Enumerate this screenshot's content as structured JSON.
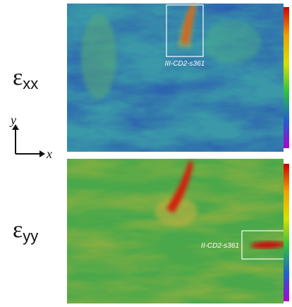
{
  "panels": [
    {
      "symbol": "ε",
      "subscript": "xx",
      "annotation": "III-CD2-s361"
    },
    {
      "symbol": "ε",
      "subscript": "yy",
      "annotation": "II-CD2-s361"
    }
  ],
  "axes": {
    "x": "x",
    "y": "y"
  }
}
